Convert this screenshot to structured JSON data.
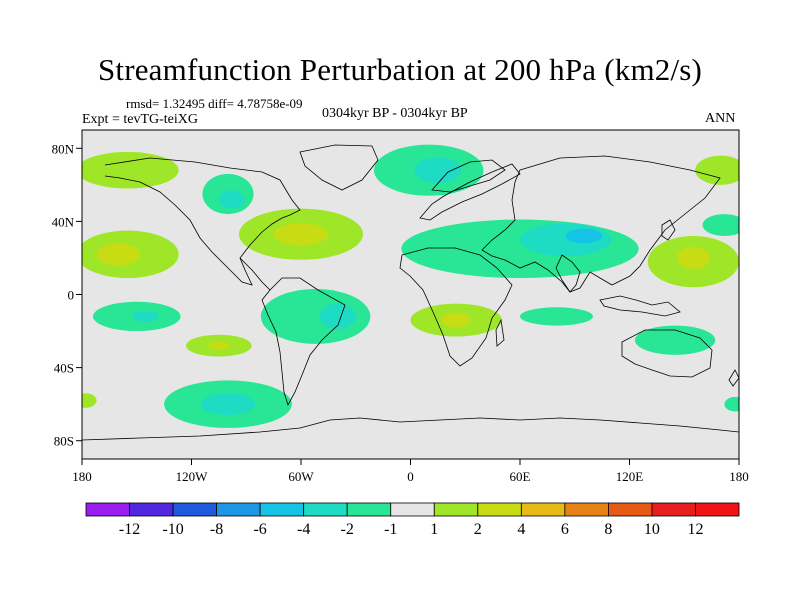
{
  "title": "Streamfunction Perturbation at 200 hPa (km2/s)",
  "stats": "rmsd= 1.32495 diff= 4.78758e-09",
  "left_label": "Expt = tevTG-teiXG",
  "center_label": "0304kyr BP - 0304kyr BP",
  "right_label": "ANN",
  "map": {
    "lon_range": [
      -180,
      180
    ],
    "lat_range": [
      -90,
      90
    ],
    "x_ticks": [
      {
        "lon": -180,
        "label": "180"
      },
      {
        "lon": -120,
        "label": "120W"
      },
      {
        "lon": -60,
        "label": "60W"
      },
      {
        "lon": 0,
        "label": "0"
      },
      {
        "lon": 60,
        "label": "60E"
      },
      {
        "lon": 120,
        "label": "120E"
      },
      {
        "lon": 180,
        "label": "180"
      }
    ],
    "y_ticks": [
      {
        "lat": 80,
        "label": "80N"
      },
      {
        "lat": 40,
        "label": "40N"
      },
      {
        "lat": 0,
        "label": "0"
      },
      {
        "lat": -40,
        "label": "40S"
      },
      {
        "lat": -80,
        "label": "80S"
      }
    ],
    "background_color": "#e6e6e6"
  },
  "colorbar": {
    "levels": [
      "-12",
      "-10",
      "-8",
      "-6",
      "-4",
      "-2",
      "-1",
      "1",
      "2",
      "4",
      "6",
      "8",
      "10",
      "12"
    ],
    "colors": [
      "#9a1ef0",
      "#5028e0",
      "#1e5adc",
      "#1e96e6",
      "#14c3e6",
      "#1edcc3",
      "#28e696",
      "#e6e6e6",
      "#a0e628",
      "#c8dc14",
      "#e6b914",
      "#e68214",
      "#e65a14",
      "#e61e1e",
      "#f01414"
    ]
  },
  "contours": [
    {
      "name": "north-pacific-east-positive",
      "color": "#a0e628",
      "lon": -155,
      "lat": 68,
      "rlon": 28,
      "rlat": 10
    },
    {
      "name": "north-pacific-west-positive",
      "color": "#a0e628",
      "lon": 170,
      "lat": 68,
      "rlon": 14,
      "rlat": 8
    },
    {
      "name": "canada-negative",
      "color": "#28e696",
      "lon": -100,
      "lat": 55,
      "rlon": 14,
      "rlat": 11
    },
    {
      "name": "canada-negative-core",
      "color": "#1edcc3",
      "lon": -98,
      "lat": 52,
      "rlon": 7,
      "rlat": 5
    },
    {
      "name": "scandinavia-negative",
      "color": "#28e696",
      "lon": 10,
      "lat": 68,
      "rlon": 30,
      "rlat": 14
    },
    {
      "name": "scandinavia-negative-core",
      "color": "#1edcc3",
      "lon": 15,
      "lat": 68,
      "rlon": 13,
      "rlat": 7
    },
    {
      "name": "subtropical-pacific-positive",
      "color": "#a0e628",
      "lon": -155,
      "lat": 22,
      "rlon": 28,
      "rlat": 13
    },
    {
      "name": "subtropical-pacific-positive-core",
      "color": "#c8dc14",
      "lon": -160,
      "lat": 22,
      "rlon": 12,
      "rlat": 6
    },
    {
      "name": "atlantic-positive",
      "color": "#a0e628",
      "lon": -60,
      "lat": 33,
      "rlon": 34,
      "rlat": 14
    },
    {
      "name": "atlantic-positive-core",
      "color": "#c8dc14",
      "lon": -60,
      "lat": 33,
      "rlon": 15,
      "rlat": 6
    },
    {
      "name": "asia-negative",
      "color": "#28e696",
      "lon": 60,
      "lat": 25,
      "rlon": 65,
      "rlat": 16
    },
    {
      "name": "asia-negative-mid",
      "color": "#1edcc3",
      "lon": 85,
      "lat": 30,
      "rlon": 25,
      "rlat": 9
    },
    {
      "name": "asia-negative-core",
      "color": "#14c3e6",
      "lon": 95,
      "lat": 32,
      "rlon": 10,
      "rlat": 4
    },
    {
      "name": "west-pacific-positive",
      "color": "#a0e628",
      "lon": 155,
      "lat": 18,
      "rlon": 25,
      "rlat": 14
    },
    {
      "name": "west-pacific-positive-core",
      "color": "#c8dc14",
      "lon": 155,
      "lat": 20,
      "rlon": 9,
      "rlat": 6
    },
    {
      "name": "east-pacific-40n-negative",
      "color": "#28e696",
      "lon": 172,
      "lat": 38,
      "rlon": 12,
      "rlat": 6
    },
    {
      "name": "south-america-negative",
      "color": "#28e696",
      "lon": -52,
      "lat": -12,
      "rlon": 30,
      "rlat": 15
    },
    {
      "name": "south-america-negative-core",
      "color": "#1edcc3",
      "lon": -40,
      "lat": -12,
      "rlon": 10,
      "rlat": 7
    },
    {
      "name": "south-pacific-negative",
      "color": "#28e696",
      "lon": -150,
      "lat": -12,
      "rlon": 24,
      "rlat": 8
    },
    {
      "name": "south-pacific-negative-core",
      "color": "#1edcc3",
      "lon": -145,
      "lat": -12,
      "rlon": 7,
      "rlat": 3
    },
    {
      "name": "south-africa-positive",
      "color": "#a0e628",
      "lon": 25,
      "lat": -14,
      "rlon": 25,
      "rlat": 9
    },
    {
      "name": "south-africa-positive-core",
      "color": "#c8dc14",
      "lon": 25,
      "lat": -14,
      "rlon": 8,
      "rlat": 4
    },
    {
      "name": "indian-ocean-negative",
      "color": "#28e696",
      "lon": 80,
      "lat": -12,
      "rlon": 20,
      "rlat": 5
    },
    {
      "name": "australia-negative",
      "color": "#28e696",
      "lon": 145,
      "lat": -25,
      "rlon": 22,
      "rlat": 8
    },
    {
      "name": "pacific-30s-positive",
      "color": "#a0e628",
      "lon": -105,
      "lat": -28,
      "rlon": 18,
      "rlat": 6
    },
    {
      "name": "pacific-30s-positive-core",
      "color": "#c8dc14",
      "lon": -105,
      "lat": -28,
      "rlon": 6,
      "rlat": 2
    },
    {
      "name": "southern-ocean-negative",
      "color": "#28e696",
      "lon": -100,
      "lat": -60,
      "rlon": 35,
      "rlat": 13
    },
    {
      "name": "southern-ocean-negative-core",
      "color": "#1edcc3",
      "lon": -100,
      "lat": -60,
      "rlon": 15,
      "rlat": 6
    },
    {
      "name": "dateline-south-positive",
      "color": "#a0e628",
      "lon": -178,
      "lat": -58,
      "rlon": 6,
      "rlat": 4
    },
    {
      "name": "east-edge-south-negative",
      "color": "#28e696",
      "lon": 178,
      "lat": -60,
      "rlon": 6,
      "rlat": 4
    }
  ]
}
